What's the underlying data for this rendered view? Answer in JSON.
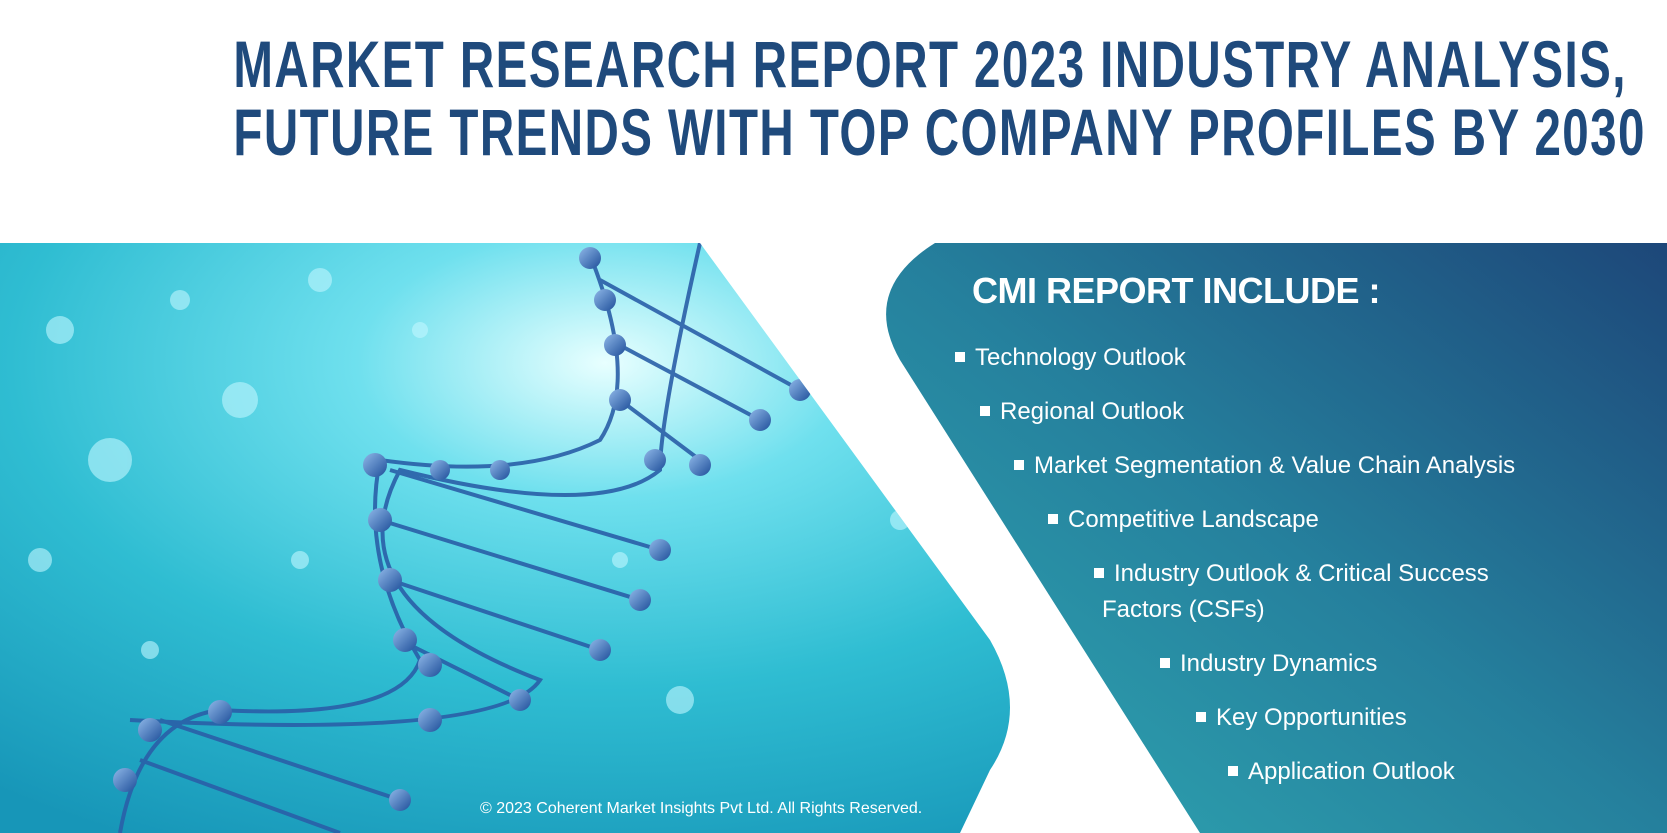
{
  "title": {
    "line1": "MARKET RESEARCH REPORT 2023 INDUSTRY ANALYSIS,",
    "line2": "FUTURE TRENDS WITH TOP COMPANY PROFILES BY 2030"
  },
  "panel": {
    "heading": "CMI REPORT INCLUDE :",
    "items": [
      {
        "label": "Technology Outlook"
      },
      {
        "label": "Regional Outlook"
      },
      {
        "label": "Market Segmentation & Value Chain Analysis"
      },
      {
        "label": "Competitive Landscape"
      },
      {
        "label": "Industry Outlook & Critical Success",
        "cont": "Factors (CSFs)"
      },
      {
        "label": "Industry Dynamics"
      },
      {
        "label": "Key Opportunities"
      },
      {
        "label": "Application Outlook"
      }
    ]
  },
  "image": {
    "subject": "dna-helix-illustration"
  },
  "footer": {
    "copyright": "© 2023 Coherent Market Insights Pvt Ltd. All Rights Reserved."
  },
  "colors": {
    "title": "#1f4a7c",
    "panel_start": "#2ba3b0",
    "panel_end": "#1d4a7c",
    "image_bg": "#35c3d6"
  }
}
